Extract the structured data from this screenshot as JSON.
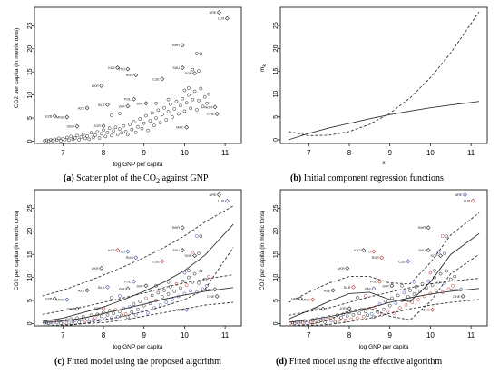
{
  "chart_data": [
    {
      "id": "a",
      "type": "scatter",
      "caption_tag": "(a)",
      "caption_pre": "Scatter plot of the CO",
      "caption_sub": "2",
      "caption_post": " against GNP",
      "xlabel": "log GNP per capita",
      "ylabel": "CO2 per capita (in metric tons)",
      "xlim": [
        6.3,
        11.4
      ],
      "ylim": [
        -0.5,
        29
      ],
      "xticks": [
        "7",
        "8",
        "9",
        "10",
        "11"
      ],
      "yticks": [
        "0",
        "5",
        "10",
        "15",
        "20",
        "25"
      ],
      "labeled_points": [
        {
          "label": "ARE",
          "x": 10.85,
          "y": 27.9
        },
        {
          "label": "LUX",
          "x": 11.05,
          "y": 26.6
        },
        {
          "label": "BHR",
          "x": 9.95,
          "y": 20.8
        },
        {
          "label": "KAZ",
          "x": 8.35,
          "y": 15.9
        },
        {
          "label": "TTO",
          "x": 8.6,
          "y": 15.6
        },
        {
          "label": "SAU",
          "x": 9.95,
          "y": 15.9
        },
        {
          "label": "SGP",
          "x": 10.25,
          "y": 14.7
        },
        {
          "label": "RUS",
          "x": 8.8,
          "y": 14.3
        },
        {
          "label": "CZE",
          "x": 9.45,
          "y": 13.5
        },
        {
          "label": "UKR",
          "x": 7.95,
          "y": 12.0
        },
        {
          "label": "POL",
          "x": 8.75,
          "y": 9.1
        },
        {
          "label": "SVK",
          "x": 9.05,
          "y": 8.2
        },
        {
          "label": "ZAF",
          "x": 8.6,
          "y": 7.6
        },
        {
          "label": "BLR",
          "x": 8.1,
          "y": 7.9
        },
        {
          "label": "AZE",
          "x": 7.6,
          "y": 7.2
        },
        {
          "label": "UZB",
          "x": 6.8,
          "y": 5.4
        },
        {
          "label": "MNG",
          "x": 7.1,
          "y": 5.2
        },
        {
          "label": "GEO",
          "x": 7.35,
          "y": 3.2
        },
        {
          "label": "JOR",
          "x": 8.0,
          "y": 3.3
        },
        {
          "label": "MAC",
          "x": 10.05,
          "y": 3.0
        },
        {
          "label": "NOR",
          "x": 10.75,
          "y": 7.4
        },
        {
          "label": "CHE",
          "x": 10.8,
          "y": 5.9
        }
      ],
      "scatter_points": [
        {
          "x": 6.55,
          "y": 0.1
        },
        {
          "x": 6.6,
          "y": 0.2
        },
        {
          "x": 6.65,
          "y": 0.05
        },
        {
          "x": 6.7,
          "y": 0.3
        },
        {
          "x": 6.75,
          "y": 0.15
        },
        {
          "x": 6.8,
          "y": 0.4
        },
        {
          "x": 6.85,
          "y": 0.2
        },
        {
          "x": 6.9,
          "y": 0.6
        },
        {
          "x": 6.95,
          "y": 0.1
        },
        {
          "x": 7.0,
          "y": 0.5
        },
        {
          "x": 7.05,
          "y": 0.3
        },
        {
          "x": 7.1,
          "y": 0.8
        },
        {
          "x": 7.15,
          "y": 0.2
        },
        {
          "x": 7.2,
          "y": 1.0
        },
        {
          "x": 7.25,
          "y": 0.4
        },
        {
          "x": 7.3,
          "y": 0.7
        },
        {
          "x": 7.35,
          "y": 1.2
        },
        {
          "x": 7.4,
          "y": 0.3
        },
        {
          "x": 7.45,
          "y": 0.9
        },
        {
          "x": 7.5,
          "y": 1.5
        },
        {
          "x": 7.55,
          "y": 0.6
        },
        {
          "x": 7.6,
          "y": 1.1
        },
        {
          "x": 7.65,
          "y": 0.4
        },
        {
          "x": 7.7,
          "y": 1.8
        },
        {
          "x": 7.75,
          "y": 0.8
        },
        {
          "x": 7.8,
          "y": 1.3
        },
        {
          "x": 7.85,
          "y": 2.0
        },
        {
          "x": 7.9,
          "y": 0.7
        },
        {
          "x": 7.95,
          "y": 1.6
        },
        {
          "x": 8.0,
          "y": 2.4
        },
        {
          "x": 8.05,
          "y": 1.0
        },
        {
          "x": 8.1,
          "y": 1.9
        },
        {
          "x": 8.15,
          "y": 2.8
        },
        {
          "x": 8.2,
          "y": 1.2
        },
        {
          "x": 8.25,
          "y": 2.2
        },
        {
          "x": 8.3,
          "y": 3.0
        },
        {
          "x": 8.35,
          "y": 1.5
        },
        {
          "x": 8.4,
          "y": 2.6
        },
        {
          "x": 8.45,
          "y": 1.8
        },
        {
          "x": 8.5,
          "y": 3.3
        },
        {
          "x": 8.55,
          "y": 2.1
        },
        {
          "x": 8.6,
          "y": 1.4
        },
        {
          "x": 8.65,
          "y": 3.6
        },
        {
          "x": 8.7,
          "y": 2.5
        },
        {
          "x": 8.75,
          "y": 4.2
        },
        {
          "x": 8.8,
          "y": 1.9
        },
        {
          "x": 8.85,
          "y": 3.1
        },
        {
          "x": 8.9,
          "y": 4.8
        },
        {
          "x": 8.95,
          "y": 2.7
        },
        {
          "x": 9.0,
          "y": 3.9
        },
        {
          "x": 9.05,
          "y": 5.5
        },
        {
          "x": 9.1,
          "y": 2.3
        },
        {
          "x": 9.15,
          "y": 4.4
        },
        {
          "x": 9.2,
          "y": 6.1
        },
        {
          "x": 9.25,
          "y": 3.4
        },
        {
          "x": 9.3,
          "y": 5.0
        },
        {
          "x": 9.35,
          "y": 6.7
        },
        {
          "x": 9.4,
          "y": 4.0
        },
        {
          "x": 9.45,
          "y": 5.8
        },
        {
          "x": 9.5,
          "y": 7.2
        },
        {
          "x": 9.55,
          "y": 4.6
        },
        {
          "x": 9.6,
          "y": 6.4
        },
        {
          "x": 9.65,
          "y": 8.0
        },
        {
          "x": 9.7,
          "y": 5.2
        },
        {
          "x": 9.75,
          "y": 7.0
        },
        {
          "x": 9.8,
          "y": 8.6
        },
        {
          "x": 9.85,
          "y": 5.9
        },
        {
          "x": 9.9,
          "y": 7.7
        },
        {
          "x": 9.95,
          "y": 9.2
        },
        {
          "x": 10.0,
          "y": 6.5
        },
        {
          "x": 10.05,
          "y": 8.3
        },
        {
          "x": 10.1,
          "y": 10.0
        },
        {
          "x": 10.15,
          "y": 7.1
        },
        {
          "x": 10.2,
          "y": 9.0
        },
        {
          "x": 10.25,
          "y": 10.8
        },
        {
          "x": 10.3,
          "y": 6.8
        },
        {
          "x": 10.35,
          "y": 8.8
        },
        {
          "x": 10.4,
          "y": 11.4
        },
        {
          "x": 10.45,
          "y": 7.5
        },
        {
          "x": 10.5,
          "y": 9.6
        },
        {
          "x": 10.2,
          "y": 15.5
        },
        {
          "x": 10.3,
          "y": 19.0
        },
        {
          "x": 10.4,
          "y": 18.9
        },
        {
          "x": 10.35,
          "y": 15.2
        },
        {
          "x": 10.55,
          "y": 8.2
        },
        {
          "x": 10.6,
          "y": 10.2
        },
        {
          "x": 10.1,
          "y": 11.5
        },
        {
          "x": 10.0,
          "y": 11.0
        },
        {
          "x": 9.6,
          "y": 9.0
        },
        {
          "x": 9.3,
          "y": 8.2
        },
        {
          "x": 8.4,
          "y": 6.0
        },
        {
          "x": 8.2,
          "y": 5.6
        }
      ]
    },
    {
      "id": "b",
      "type": "line",
      "caption_tag": "(b)",
      "caption_text": "Initial component regression functions",
      "xlabel": "x",
      "ylabel": "m",
      "ylabel_sub": "k",
      "xlim": [
        6.3,
        11.4
      ],
      "ylim": [
        -0.8,
        29
      ],
      "xticks": [
        "7",
        "8",
        "9",
        "10",
        "11"
      ],
      "yticks": [
        "0",
        "5",
        "10",
        "15",
        "20",
        "25"
      ],
      "series": [
        {
          "style": "solid",
          "x": [
            6.5,
            7.0,
            7.5,
            8.0,
            8.5,
            9.0,
            9.5,
            10.0,
            10.5,
            11.2
          ],
          "y": [
            0.0,
            1.4,
            2.6,
            3.6,
            4.6,
            5.5,
            6.3,
            7.0,
            7.6,
            8.4
          ]
        },
        {
          "style": "dashed",
          "x": [
            6.5,
            7.0,
            7.5,
            8.0,
            8.5,
            9.0,
            9.5,
            10.0,
            10.5,
            11.2
          ],
          "y": [
            1.8,
            0.9,
            1.0,
            1.8,
            3.4,
            5.8,
            9.2,
            13.6,
            19.0,
            28.0
          ]
        }
      ]
    },
    {
      "id": "c",
      "type": "scatter",
      "caption_tag": "(c)",
      "caption_text": "Fitted model using the proposed algorithm",
      "xlabel": "log GNP per capita",
      "ylabel": "CO2 per capita (in metric tons)",
      "xlim": [
        6.3,
        11.4
      ],
      "ylim": [
        -0.5,
        29
      ],
      "xticks": [
        "7",
        "8",
        "9",
        "10",
        "11"
      ],
      "yticks": [
        "0",
        "5",
        "10",
        "15",
        "20",
        "25"
      ],
      "curves": [
        {
          "style": "solid",
          "x": [
            6.5,
            7.0,
            7.5,
            8.0,
            8.5,
            9.0,
            9.5,
            10.0,
            10.5,
            11.2
          ],
          "y": [
            0.5,
            1.2,
            2.4,
            3.6,
            5.2,
            7.0,
            9.0,
            11.5,
            14.8,
            21.5
          ]
        },
        {
          "style": "dashed",
          "x": [
            6.5,
            7.0,
            7.5,
            8.0,
            8.5,
            9.0,
            9.5,
            10.0,
            10.5,
            11.2
          ],
          "y": [
            6.0,
            7.2,
            8.8,
            10.5,
            12.3,
            14.3,
            16.5,
            19.0,
            22.0,
            25.5
          ]
        },
        {
          "style": "dashed",
          "x": [
            6.5,
            7.0,
            7.5,
            8.0,
            8.5,
            9.0,
            9.5,
            10.0,
            10.5,
            11.2
          ],
          "y": [
            -0.5,
            -0.5,
            0.0,
            0.8,
            1.6,
            2.6,
            3.8,
            5.2,
            7.4,
            16.5
          ]
        },
        {
          "style": "solid",
          "x": [
            6.5,
            7.0,
            7.5,
            8.0,
            8.5,
            9.0,
            9.5,
            10.0,
            10.5,
            11.2
          ],
          "y": [
            0.2,
            0.6,
            1.2,
            2.2,
            3.2,
            4.2,
            5.3,
            6.2,
            7.0,
            7.8
          ]
        },
        {
          "style": "dashed",
          "x": [
            6.5,
            7.0,
            7.5,
            8.0,
            8.5,
            9.0,
            9.5,
            10.0,
            10.5,
            11.2
          ],
          "y": [
            2.0,
            2.8,
            3.6,
            4.6,
            5.6,
            6.6,
            7.8,
            8.8,
            9.6,
            10.6
          ]
        },
        {
          "style": "dashed",
          "x": [
            6.5,
            7.0,
            7.5,
            8.0,
            8.5,
            9.0,
            9.5,
            10.0,
            10.5,
            11.2
          ],
          "y": [
            -0.5,
            -0.3,
            0.0,
            0.2,
            0.8,
            1.6,
            2.4,
            3.2,
            4.0,
            4.6
          ]
        }
      ]
    },
    {
      "id": "d",
      "type": "scatter",
      "caption_tag": "(d)",
      "caption_text": "Fitted model using the effective algorithm",
      "xlabel": "log GNP per capita",
      "ylabel": "CO2 per capita (in metric tons)",
      "xlim": [
        6.3,
        11.4
      ],
      "ylim": [
        -0.5,
        29
      ],
      "xticks": [
        "7",
        "8",
        "9",
        "10",
        "11"
      ],
      "yticks": [
        "0",
        "5",
        "10",
        "15",
        "20",
        "25"
      ],
      "curves": [
        {
          "style": "solid",
          "x": [
            6.5,
            7.0,
            7.5,
            8.0,
            8.5,
            9.0,
            9.5,
            10.0,
            10.5,
            11.2
          ],
          "y": [
            1.0,
            2.8,
            4.8,
            6.5,
            6.8,
            5.2,
            4.8,
            9.0,
            15.0,
            19.5
          ]
        },
        {
          "style": "dashed",
          "x": [
            6.5,
            7.0,
            7.5,
            8.0,
            8.5,
            9.0,
            9.5,
            10.0,
            10.5,
            11.2
          ],
          "y": [
            4.6,
            6.8,
            8.8,
            10.2,
            10.2,
            8.8,
            8.6,
            13.2,
            19.2,
            24.0
          ]
        },
        {
          "style": "dashed",
          "x": [
            6.5,
            7.0,
            7.5,
            8.0,
            8.5,
            9.0,
            9.5,
            10.0,
            10.5,
            11.2
          ],
          "y": [
            -0.5,
            -0.2,
            0.8,
            2.8,
            3.4,
            1.6,
            0.8,
            4.8,
            10.8,
            15.0
          ]
        },
        {
          "style": "solid",
          "x": [
            6.5,
            7.0,
            7.5,
            8.0,
            8.5,
            9.0,
            9.5,
            10.0,
            10.5,
            11.2
          ],
          "y": [
            0.3,
            0.8,
            1.5,
            2.4,
            3.4,
            4.6,
            5.6,
            6.4,
            7.0,
            7.6
          ]
        },
        {
          "style": "dashed",
          "x": [
            6.5,
            7.0,
            7.5,
            8.0,
            8.5,
            9.0,
            9.5,
            10.0,
            10.5,
            11.2
          ],
          "y": [
            1.8,
            2.6,
            3.4,
            4.6,
            5.8,
            6.8,
            7.8,
            8.6,
            9.2,
            9.8
          ]
        },
        {
          "style": "dashed",
          "x": [
            6.5,
            7.0,
            7.5,
            8.0,
            8.5,
            9.0,
            9.5,
            10.0,
            10.5,
            11.2
          ],
          "y": [
            -0.5,
            -0.4,
            -0.2,
            0.4,
            1.2,
            2.2,
            3.2,
            4.0,
            4.6,
            5.2
          ]
        }
      ]
    }
  ]
}
